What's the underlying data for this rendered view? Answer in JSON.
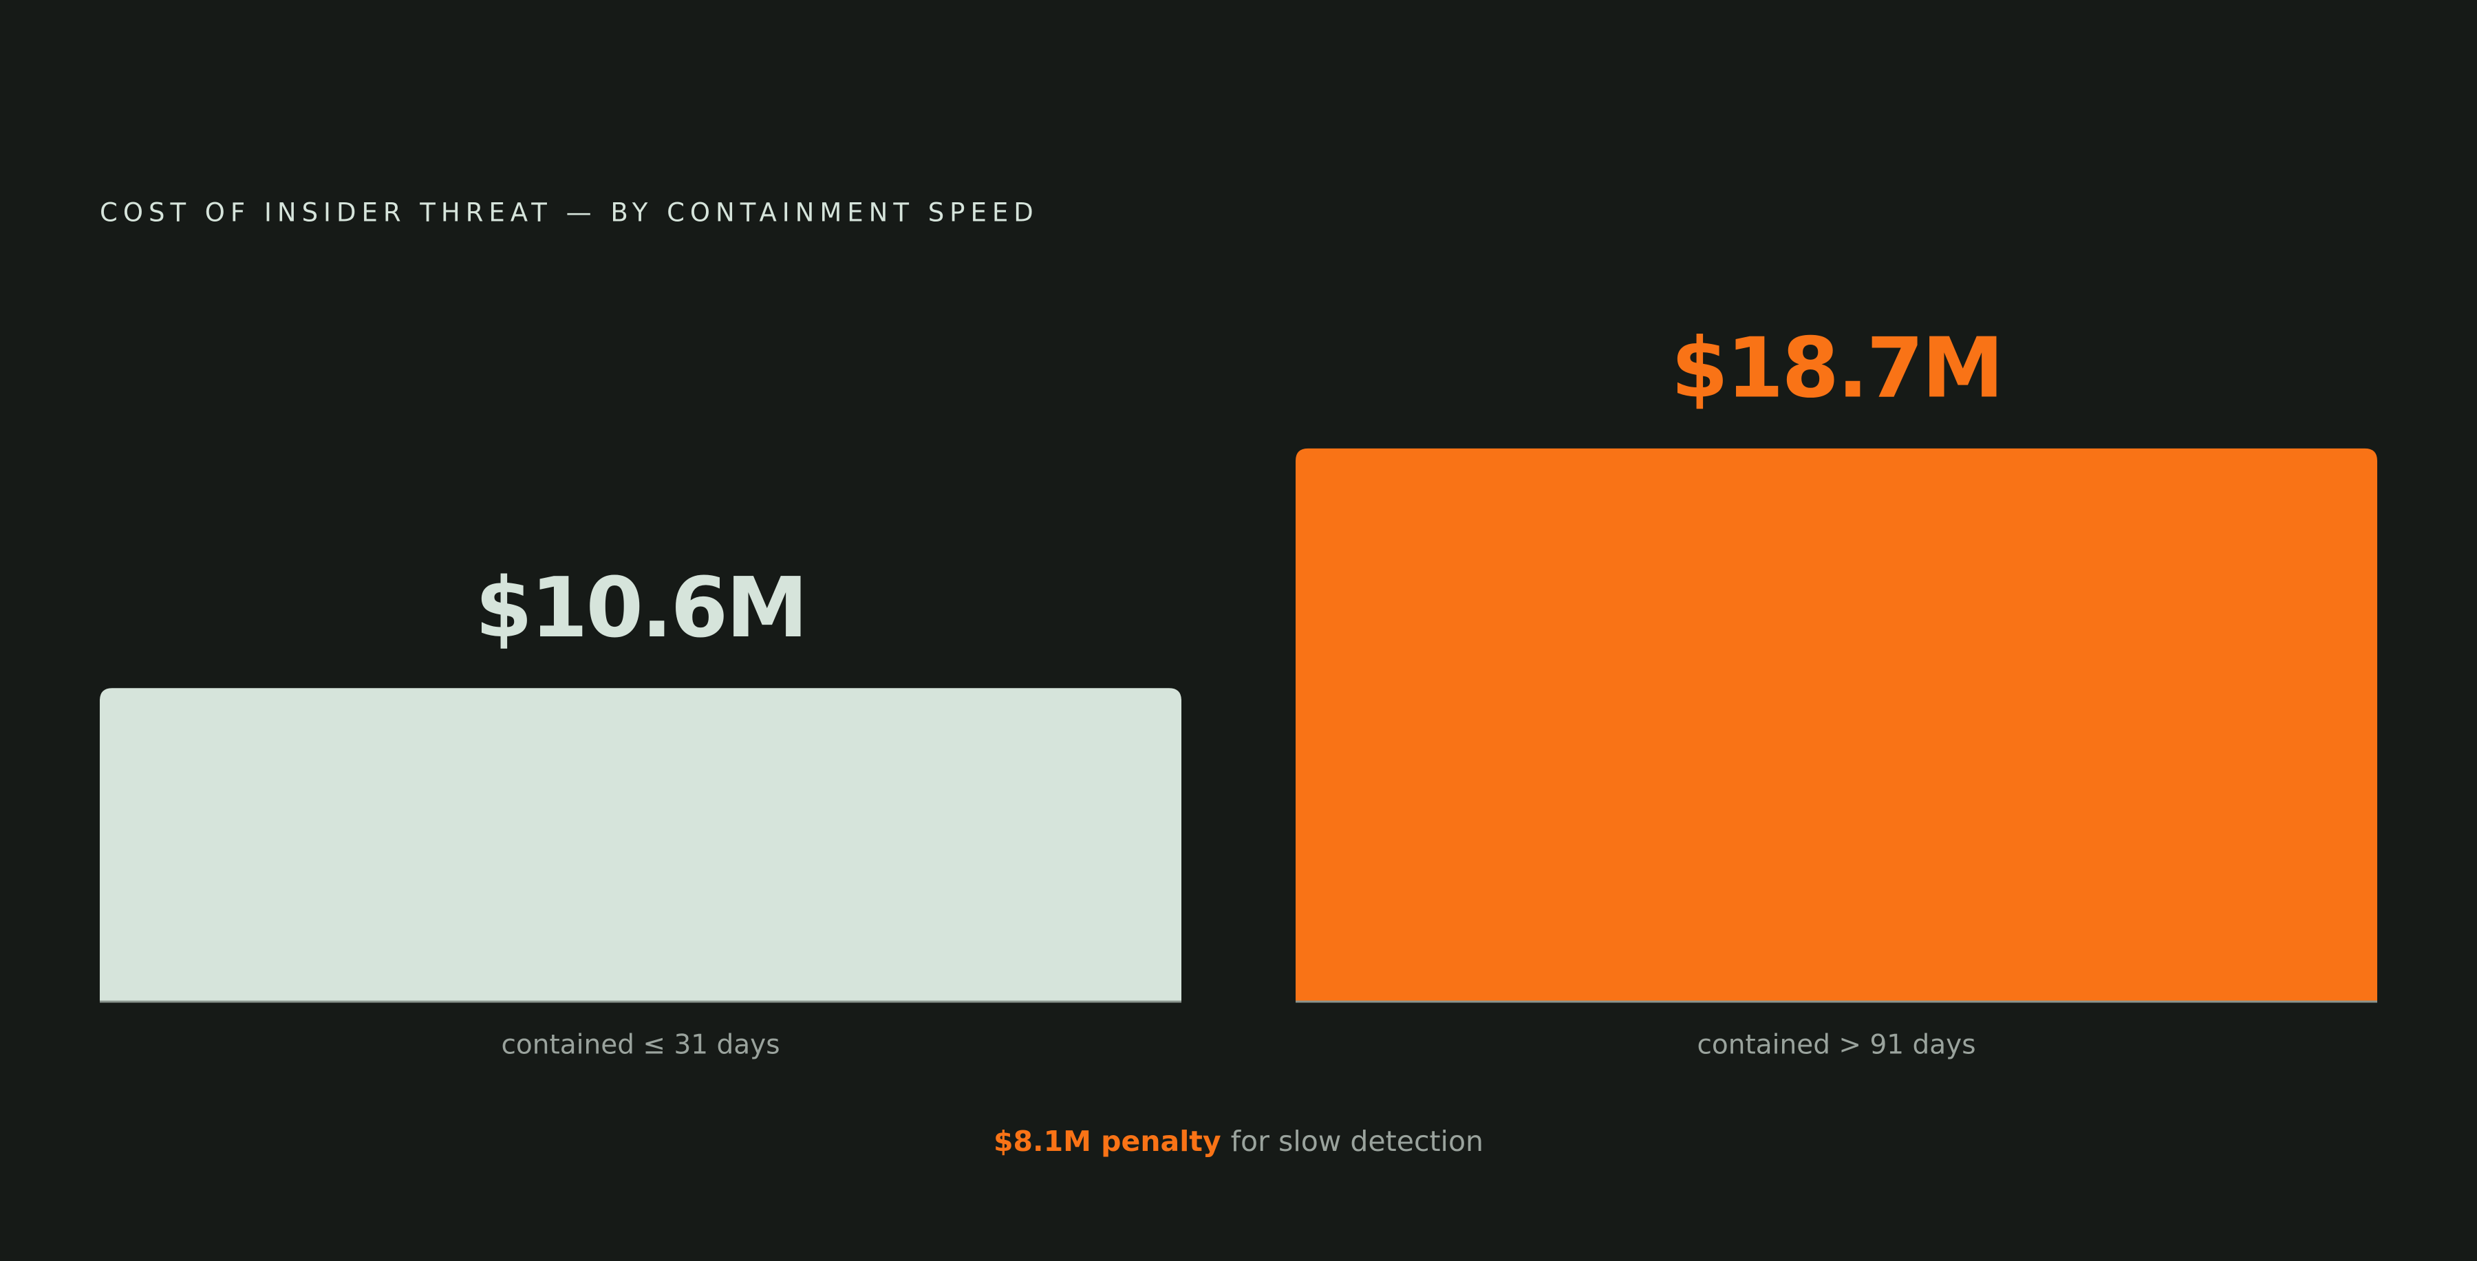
{
  "chart_data": {
    "type": "bar",
    "title": "COST OF INSIDER THREAT — BY CONTAINMENT SPEED",
    "categories": [
      "contained ≤ 31 days",
      "contained > 91 days"
    ],
    "values": [
      10.6,
      18.7
    ],
    "value_labels": [
      "$10.6M",
      "$18.7M"
    ],
    "colors": [
      "#d6e4db",
      "#f97316"
    ],
    "footnote": {
      "highlight": "$8.1M penalty",
      "text": "for slow detection"
    }
  }
}
